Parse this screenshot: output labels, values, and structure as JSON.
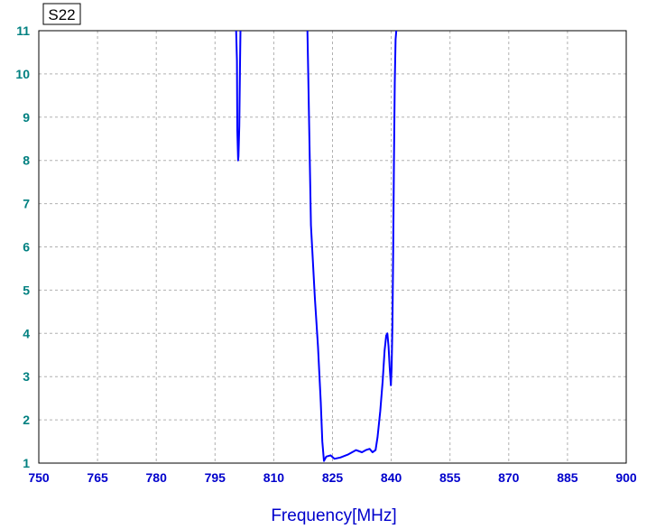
{
  "chart_data": {
    "type": "line",
    "title": "S22",
    "xlabel": "Frequency[MHz]",
    "ylabel": "",
    "xlim": [
      750,
      900
    ],
    "ylim": [
      1,
      11
    ],
    "x_ticks": [
      750,
      765,
      780,
      795,
      810,
      825,
      840,
      855,
      870,
      885,
      900
    ],
    "y_ticks": [
      1,
      2,
      3,
      4,
      5,
      6,
      7,
      8,
      9,
      10,
      11
    ],
    "grid": true,
    "legend": "none",
    "colors": {
      "line": "#0000ff",
      "ytick": "#008080",
      "xtick": "#0000cc",
      "grid": "#b0b0b0"
    },
    "series": [
      {
        "x": [
          800.4,
          800.6,
          800.7,
          800.9,
          801.0,
          801.2,
          801.4,
          801.5
        ],
        "y": [
          11.0,
          10.3,
          8.7,
          8.0,
          8.1,
          8.8,
          10.4,
          11.0
        ]
      },
      {
        "x": [
          818.6,
          818.8,
          819.5,
          820.5,
          821.3,
          822.0,
          822.4,
          822.8,
          823.4,
          824.5,
          825.5,
          827.0,
          829.0,
          831.0,
          832.5,
          833.5,
          834.5,
          835.2,
          836.0,
          836.5,
          837.2,
          837.8,
          838.3,
          838.7,
          839.0,
          839.3,
          839.6,
          839.9,
          840.1,
          840.3,
          840.5,
          840.7,
          840.9,
          841.1,
          841.3
        ],
        "y": [
          11.0,
          10.0,
          6.5,
          4.8,
          3.7,
          2.4,
          1.5,
          1.05,
          1.15,
          1.18,
          1.1,
          1.13,
          1.2,
          1.3,
          1.25,
          1.3,
          1.33,
          1.25,
          1.3,
          1.6,
          2.2,
          2.9,
          3.6,
          3.95,
          4.0,
          3.7,
          3.2,
          2.8,
          3.2,
          4.2,
          6.0,
          8.0,
          9.8,
          10.8,
          11.0
        ]
      }
    ]
  }
}
